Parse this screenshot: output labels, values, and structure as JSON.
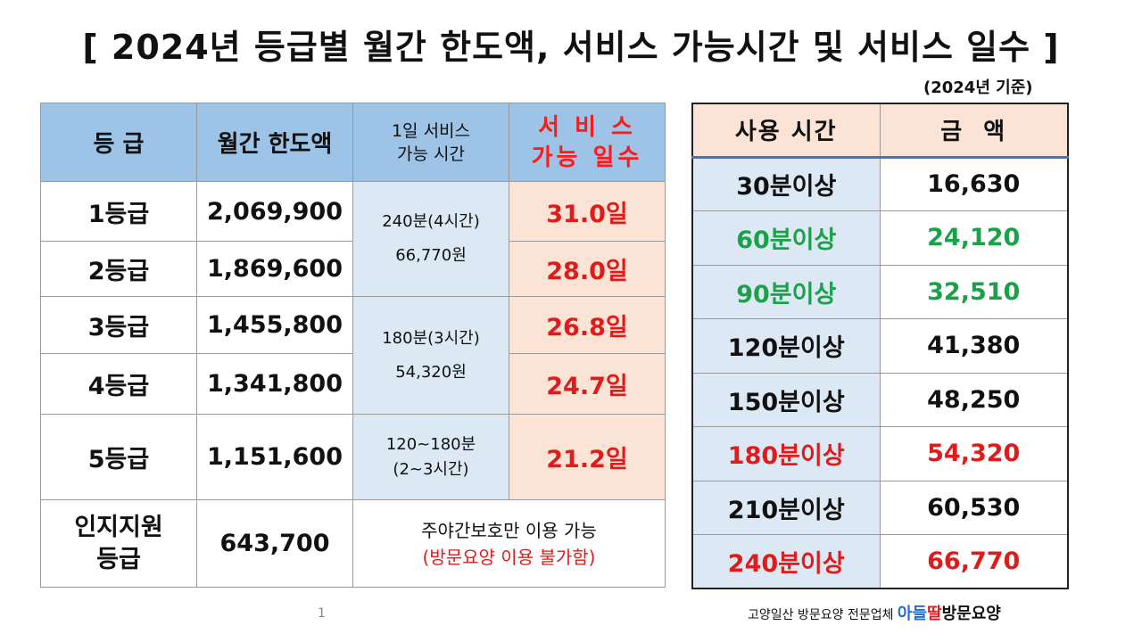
{
  "title": "[ 2024년 등급별 월간 한도액, 서비스 가능시간 및 서비스 일수 ]",
  "basis": "(2024년 기준)",
  "grade_table": {
    "headers": {
      "grade": "등 급",
      "limit": "월간 한도액",
      "service_line1": "1일 서비스",
      "service_line2": "가능 시간",
      "days_line1": "서 비 스",
      "days_line2": "가능 일수"
    },
    "rows": [
      {
        "grade": "1등급",
        "limit": "2,069,900",
        "days": "31.0일"
      },
      {
        "grade": "2등급",
        "limit": "1,869,600",
        "days": "28.0일"
      },
      {
        "grade": "3등급",
        "limit": "1,455,800",
        "days": "26.8일"
      },
      {
        "grade": "4등급",
        "limit": "1,341,800",
        "days": "24.7일"
      },
      {
        "grade": "5등급",
        "limit": "1,151,600",
        "days": "21.2일"
      }
    ],
    "service_groups": [
      {
        "line1": "240분(4시간)",
        "line2": "66,770원"
      },
      {
        "line1": "180분(3시간)",
        "line2": "54,320원"
      },
      {
        "line1": "120~180분",
        "line2": "(2~3시간)"
      }
    ],
    "cognitive": {
      "grade_line1": "인지지원",
      "grade_line2": "등급",
      "limit": "643,700",
      "note_line1": "주야간보호만 이용 가능",
      "note_line2": "(방문요양 이용 불가함)"
    }
  },
  "fee_table": {
    "headers": {
      "time": "사용 시간",
      "amount": "금  액"
    },
    "rows": [
      {
        "time": "30분이상",
        "amount": "16,630",
        "color": "black"
      },
      {
        "time": "60분이상",
        "amount": "24,120",
        "color": "green"
      },
      {
        "time": "90분이상",
        "amount": "32,510",
        "color": "green"
      },
      {
        "time": "120분이상",
        "amount": "41,380",
        "color": "black"
      },
      {
        "time": "150분이상",
        "amount": "48,250",
        "color": "black"
      },
      {
        "time": "180분이상",
        "amount": "54,320",
        "color": "red"
      },
      {
        "time": "210분이상",
        "amount": "60,530",
        "color": "black"
      },
      {
        "time": "240분이상",
        "amount": "66,770",
        "color": "red"
      }
    ]
  },
  "page_number": "1",
  "footer": {
    "prefix": "고양일산 방문요양 전문업체 ",
    "brand_a": "아들",
    "brand_b": "딸",
    "brand_c": "방문요양"
  },
  "colors": {
    "header_blue": "#9dc3e6",
    "cell_blue": "#dde8f5",
    "cell_peach": "#fbe3d6",
    "accent_red": "#e01b1b",
    "accent_green": "#1aa14a"
  }
}
